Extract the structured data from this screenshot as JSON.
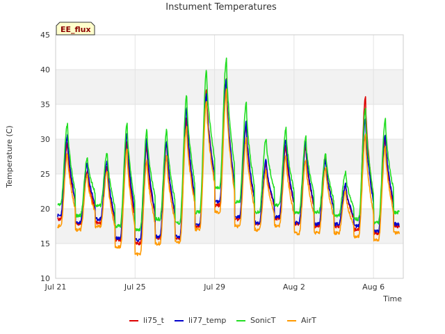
{
  "chart_data": {
    "type": "line",
    "title": "Instument Temperatures",
    "xlabel": "Time",
    "ylabel": "Temperature (C)",
    "badge": "EE_flux",
    "ylim": [
      10,
      45
    ],
    "xlim": [
      "2023-07-21",
      "2023-08-07T12:00"
    ],
    "y_ticks": [
      10,
      15,
      20,
      25,
      30,
      35,
      40,
      45
    ],
    "x_ticks": [
      {
        "date": "2023-07-21",
        "label": "Jul 21"
      },
      {
        "date": "2023-07-25",
        "label": "Jul 25"
      },
      {
        "date": "2023-07-29",
        "label": "Jul 29"
      },
      {
        "date": "2023-08-02",
        "label": "Aug 2"
      },
      {
        "date": "2023-08-06",
        "label": "Aug 6"
      }
    ],
    "grid": true,
    "legend_position": "bottom",
    "series": [
      {
        "name": "li75_t",
        "color": "#dd0000",
        "daily_min": [
          18.5,
          17.8,
          18.0,
          15.5,
          15.0,
          15.8,
          15.8,
          17.5,
          20.5,
          18.5,
          17.8,
          18.5,
          17.8,
          17.5,
          17.5,
          17.0,
          16.5,
          17.5,
          20.5
        ],
        "daily_max": [
          29.5,
          25.5,
          26.0,
          29.5,
          29.0,
          29.5,
          33.0,
          37.0,
          38.5,
          32.0,
          26.5,
          29.0,
          29.0,
          27.5,
          23.5,
          36.0,
          30.0
        ]
      },
      {
        "name": "li77_temp",
        "color": "#0000cc",
        "daily_min": [
          19.0,
          18.0,
          18.5,
          15.8,
          15.5,
          16.0,
          16.0,
          17.8,
          21.0,
          18.8,
          18.0,
          18.8,
          18.0,
          17.8,
          17.8,
          17.5,
          16.8,
          17.8,
          21.0
        ],
        "daily_max": [
          30.5,
          26.5,
          26.8,
          31.0,
          30.0,
          29.8,
          34.5,
          36.5,
          38.5,
          32.5,
          27.0,
          30.0,
          29.5,
          27.0,
          23.5,
          33.0,
          30.8
        ]
      },
      {
        "name": "SonicT",
        "color": "#22dd22",
        "daily_min": [
          20.5,
          19.0,
          20.5,
          17.5,
          17.0,
          18.5,
          18.0,
          19.5,
          23.0,
          21.0,
          19.5,
          20.5,
          19.5,
          19.5,
          19.0,
          18.5,
          18.0,
          19.5,
          22.5
        ],
        "daily_max": [
          32.2,
          27.3,
          28.0,
          32.3,
          31.3,
          31.3,
          36.3,
          39.8,
          41.5,
          35.2,
          30.2,
          31.5,
          30.3,
          28.0,
          25.3,
          34.3,
          32.8
        ]
      },
      {
        "name": "AirT",
        "color": "#ff9900",
        "daily_min": [
          17.5,
          17.0,
          17.5,
          14.5,
          13.5,
          15.0,
          15.2,
          17.0,
          19.5,
          17.5,
          17.0,
          17.5,
          16.5,
          16.5,
          16.5,
          16.0,
          15.5,
          16.5,
          20.0
        ],
        "daily_max": [
          28.0,
          24.8,
          25.5,
          28.5,
          27.0,
          27.5,
          32.0,
          35.5,
          37.0,
          30.0,
          25.5,
          27.5,
          27.0,
          26.0,
          22.5,
          30.5,
          29.0
        ]
      }
    ]
  }
}
